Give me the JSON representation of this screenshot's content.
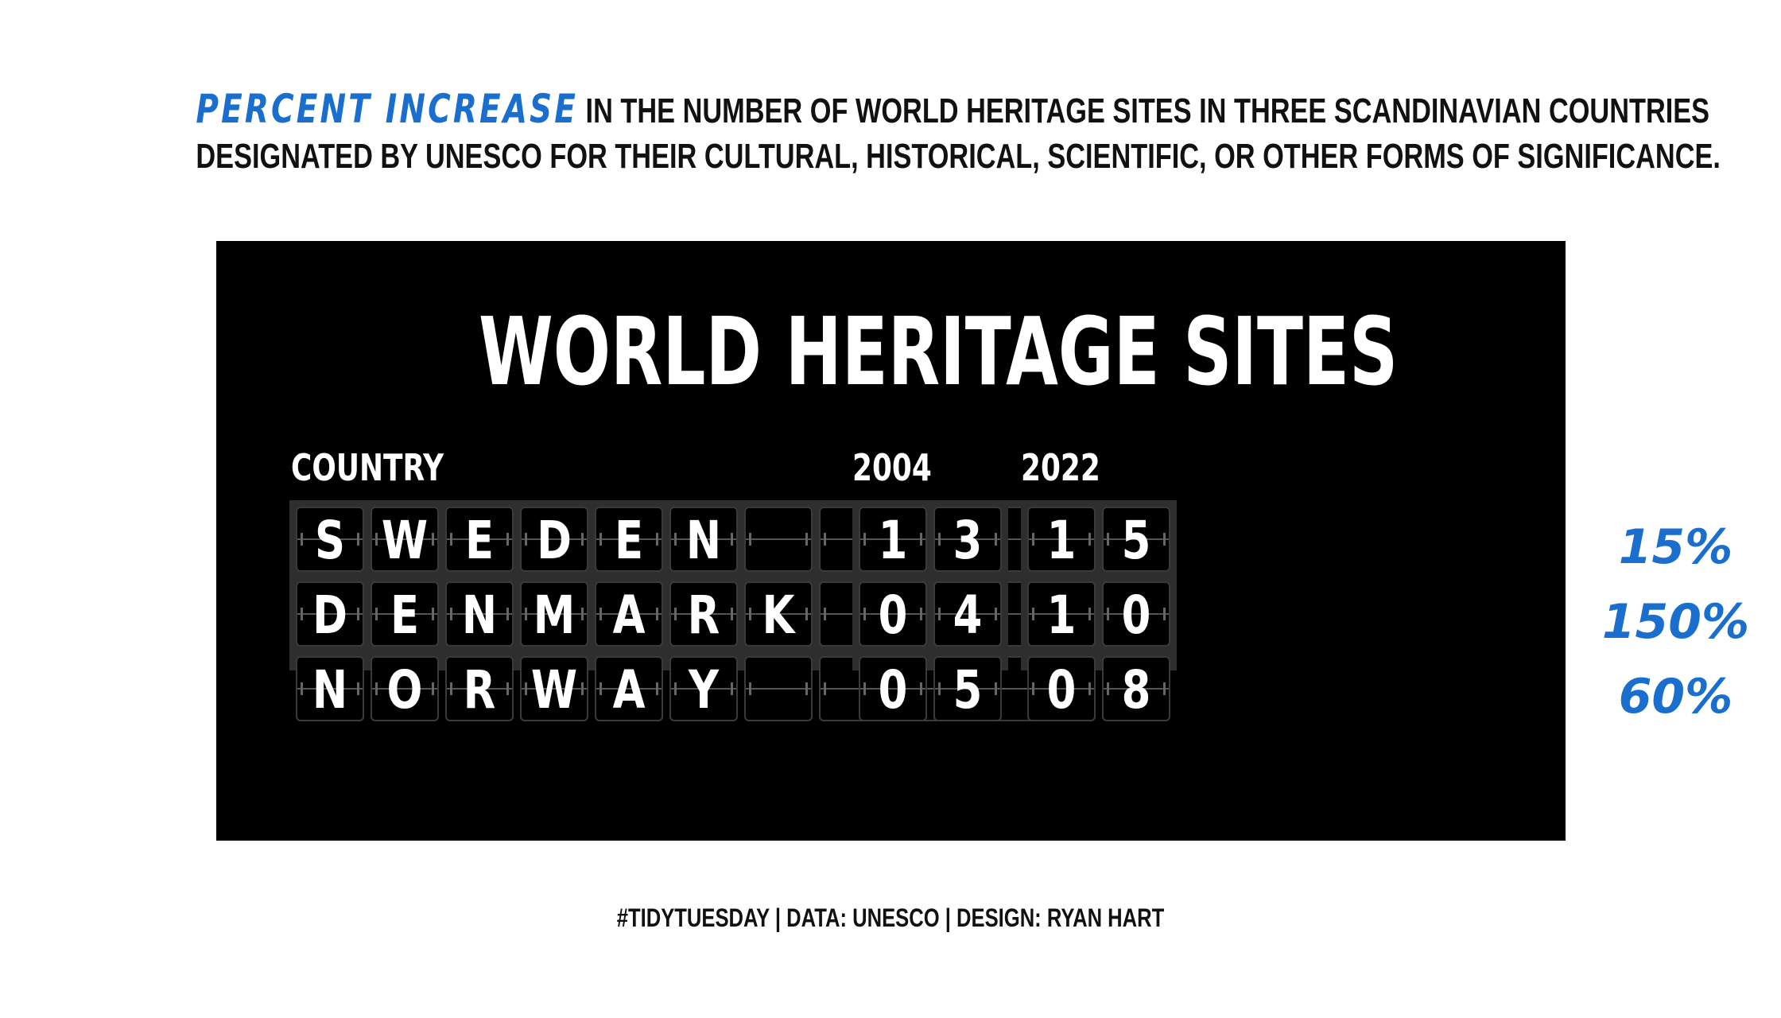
{
  "subtitle": {
    "highlight": "PERCENT INCREASE",
    "line1_rest": " IN THE NUMBER OF WORLD HERITAGE SITES IN THREE SCANDINAVIAN COUNTRIES",
    "line2": "DESIGNATED BY UNESCO FOR THEIR CULTURAL, HISTORICAL, SCIENTIFIC, OR OTHER FORMS OF SIGNIFICANCE.",
    "highlight_color": "#1a6fce"
  },
  "board": {
    "title": "WORLD HERITAGE SITES",
    "background": "#000000"
  },
  "footer": "#TIDYTUESDAY | DATA: UNESCO | DESIGN: RYAN HART",
  "chart_data": {
    "type": "table",
    "title": "WORLD HERITAGE SITES",
    "columns": [
      "COUNTRY",
      "2004",
      "2022"
    ],
    "rows": [
      {
        "country": "SWEDEN",
        "y2004": "13",
        "y2022": "15",
        "pct": "15%"
      },
      {
        "country": "DENMARK",
        "y2004": "04",
        "y2022": "10",
        "pct": "150%"
      },
      {
        "country": "NORWAY",
        "y2004": "05",
        "y2022": "08",
        "pct": "60%"
      }
    ],
    "country_tiles": 10,
    "number_tiles": 2
  }
}
